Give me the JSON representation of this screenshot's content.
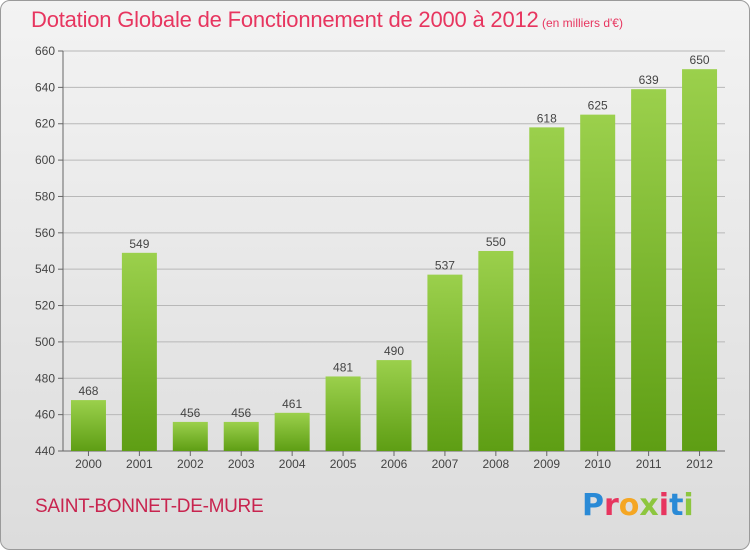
{
  "header": {
    "title": "Dotation Globale de Fonctionnement de 2000 à 2012",
    "unit": "(en milliers d'€)"
  },
  "footer": {
    "commune": "SAINT-BONNET-DE-MURE",
    "brand_letters": [
      "P",
      "r",
      "o",
      "x",
      "i",
      "t",
      "i"
    ],
    "brand_colors": [
      "#2a8ad6",
      "#e7355f",
      "#f5a623",
      "#8dc63f",
      "#e7355f",
      "#2a8ad6",
      "#8dc63f"
    ]
  },
  "chart_data": {
    "type": "bar",
    "categories": [
      "2000",
      "2001",
      "2002",
      "2003",
      "2004",
      "2005",
      "2006",
      "2007",
      "2008",
      "2009",
      "2010",
      "2011",
      "2012"
    ],
    "values": [
      468,
      549,
      456,
      456,
      461,
      481,
      490,
      537,
      550,
      618,
      625,
      639,
      650
    ],
    "data_labels": [
      "468",
      "549",
      "456",
      "456",
      "461",
      "481",
      "490",
      "537",
      "550",
      "618",
      "625",
      "639",
      "650"
    ],
    "ylim": [
      440,
      660
    ],
    "yticks": [
      440,
      460,
      480,
      500,
      520,
      540,
      560,
      580,
      600,
      620,
      640,
      660
    ],
    "grid": true,
    "colors": {
      "bar_top": "#9bd04c",
      "bar_bottom": "#5e9e14",
      "grid": "#b8b8b8",
      "axis": "#666666"
    }
  }
}
